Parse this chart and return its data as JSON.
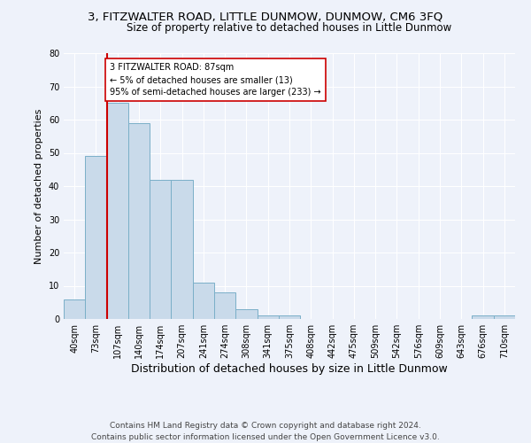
{
  "title": "3, FITZWALTER ROAD, LITTLE DUNMOW, DUNMOW, CM6 3FQ",
  "subtitle": "Size of property relative to detached houses in Little Dunmow",
  "xlabel": "Distribution of detached houses by size in Little Dunmow",
  "ylabel": "Number of detached properties",
  "bin_labels": [
    "40sqm",
    "73sqm",
    "107sqm",
    "140sqm",
    "174sqm",
    "207sqm",
    "241sqm",
    "274sqm",
    "308sqm",
    "341sqm",
    "375sqm",
    "408sqm",
    "442sqm",
    "475sqm",
    "509sqm",
    "542sqm",
    "576sqm",
    "609sqm",
    "643sqm",
    "676sqm",
    "710sqm"
  ],
  "bar_values": [
    6,
    49,
    65,
    59,
    42,
    42,
    11,
    8,
    3,
    1,
    1,
    0,
    0,
    0,
    0,
    0,
    0,
    0,
    0,
    1,
    1
  ],
  "bar_color": "#c9daea",
  "bar_edge_color": "#7aafc8",
  "background_color": "#eef2fa",
  "vline_color": "#cc0000",
  "annotation_text": "3 FITZWALTER ROAD: 87sqm\n← 5% of detached houses are smaller (13)\n95% of semi-detached houses are larger (233) →",
  "annotation_box_color": "#ffffff",
  "annotation_box_edge_color": "#cc0000",
  "ylim": [
    0,
    80
  ],
  "yticks": [
    0,
    10,
    20,
    30,
    40,
    50,
    60,
    70,
    80
  ],
  "footnote": "Contains HM Land Registry data © Crown copyright and database right 2024.\nContains public sector information licensed under the Open Government Licence v3.0.",
  "title_fontsize": 9.5,
  "subtitle_fontsize": 8.5,
  "xlabel_fontsize": 9,
  "ylabel_fontsize": 8,
  "footnote_fontsize": 6.5,
  "tick_fontsize": 7
}
